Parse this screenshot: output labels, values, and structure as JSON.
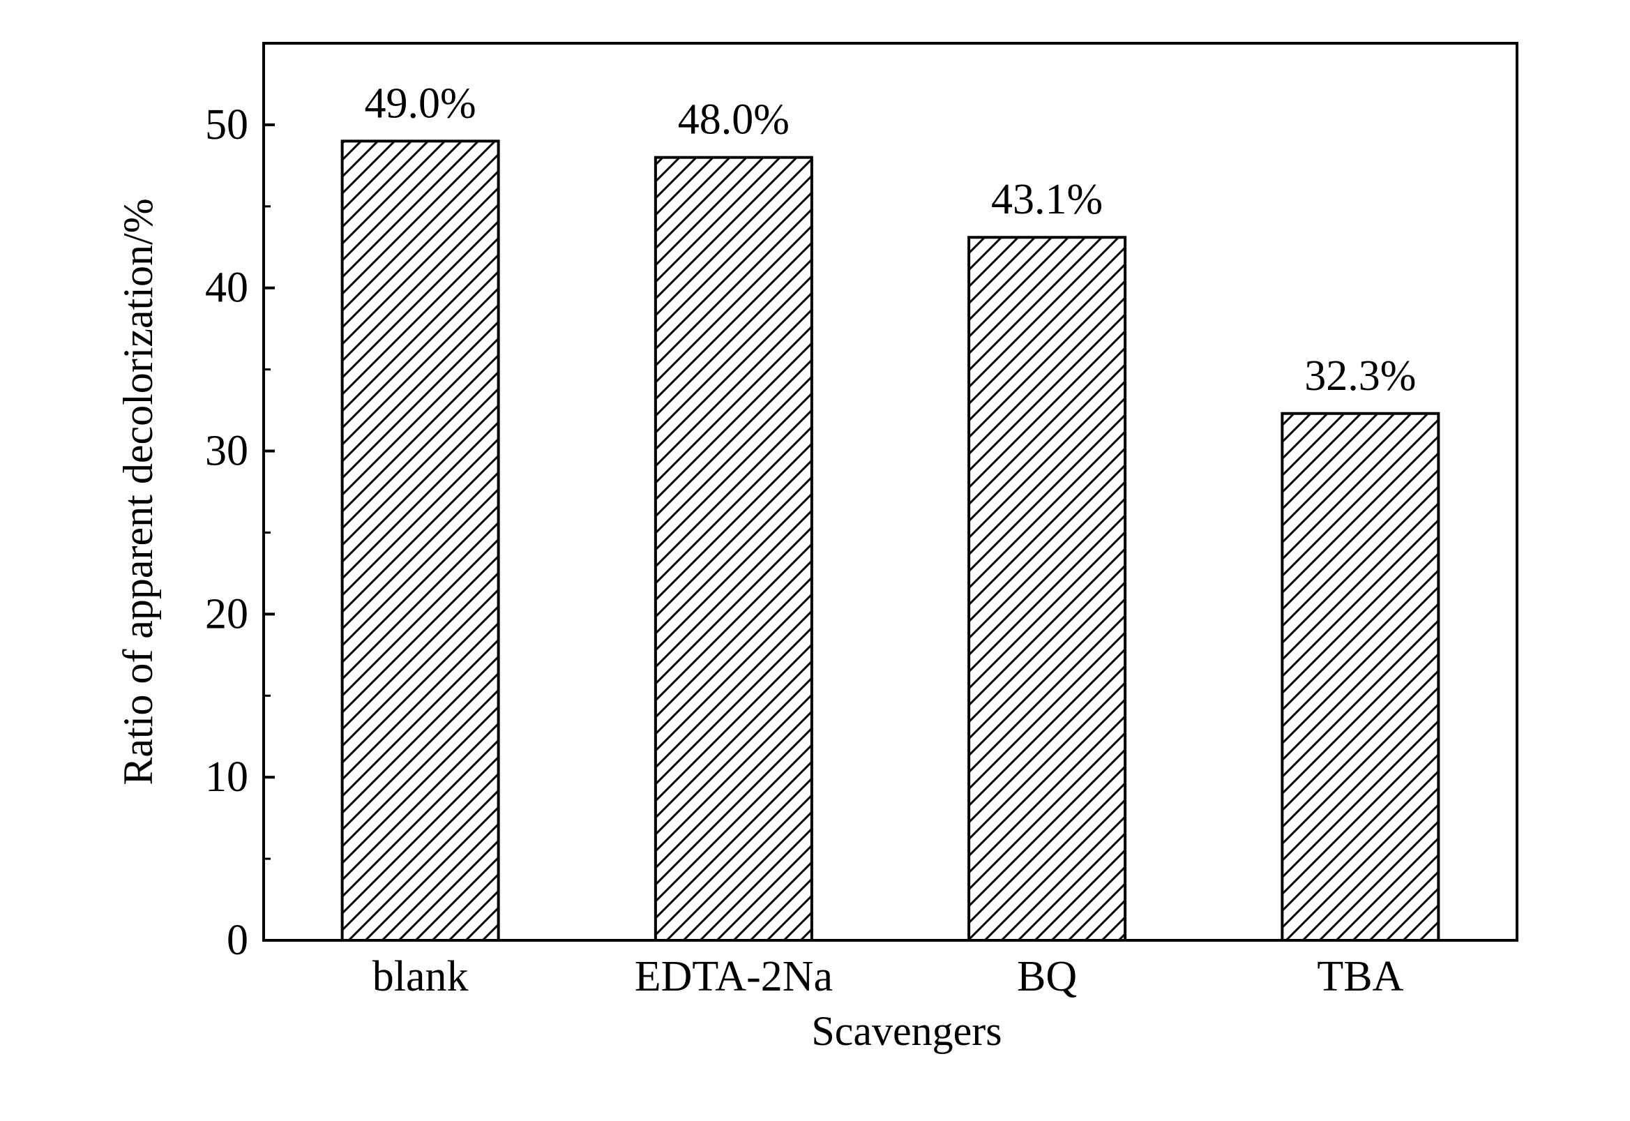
{
  "chart_data": {
    "type": "bar",
    "title": "",
    "xlabel": "Scavengers",
    "ylabel": "Ratio of apparent decolorization/%",
    "categories": [
      "blank",
      "EDTA-2Na",
      "BQ",
      "TBA"
    ],
    "values": [
      49.0,
      48.0,
      43.1,
      32.3
    ],
    "data_labels": [
      "49.0%",
      "48.0%",
      "43.1%",
      "32.3%"
    ],
    "ylim": [
      0,
      55
    ],
    "y_ticks": [
      0,
      10,
      20,
      30,
      40,
      50
    ],
    "y_tick_labels": [
      "0",
      "10",
      "20",
      "30",
      "40",
      "50"
    ],
    "y_minor_step": 5,
    "bar_fill": "hatched diagonal",
    "colors": {
      "bar_edge": "#000000",
      "hatch": "#000000",
      "background": "#ffffff"
    },
    "grid": false,
    "legend": "none"
  }
}
